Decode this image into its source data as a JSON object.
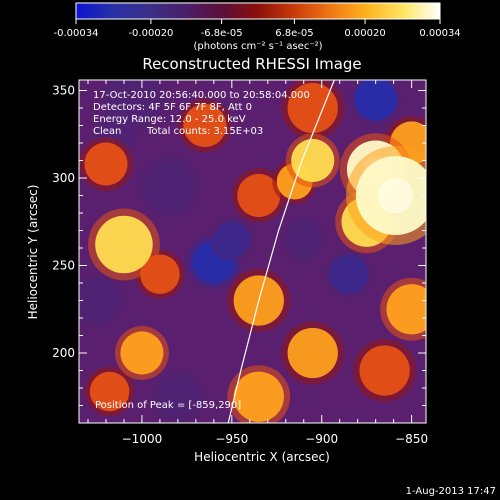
{
  "colorbar": {
    "gradient": [
      "#0a14d2",
      "#2830a6",
      "#3a2f8a",
      "#4a1f6a",
      "#5a0f3a",
      "#8c0f0a",
      "#c83c0a",
      "#f07814",
      "#ffb41e",
      "#ffe664",
      "#ffffff"
    ],
    "ticks": [
      "-0.00034",
      "-0.00020",
      "-6.8e-05",
      "6.8e-05",
      "0.00020",
      "0.00034"
    ],
    "tick_values": [
      -0.00034,
      -0.0002,
      -6.8e-05,
      6.8e-05,
      0.0002,
      0.00034
    ],
    "range": [
      -0.00034,
      0.00034
    ],
    "unit_label": "(photons cm⁻² s⁻¹ asec⁻²)"
  },
  "header": {
    "title": "Reconstructed RHESSI Image"
  },
  "annotations": {
    "time_range": "17-Oct-2010 20:56:40.000 to 20:58:04.000",
    "detectors": "Detectors: 4F 5F 6F 7F 8F, Att 0",
    "energy": "Energy Range: 12.0 - 25.0 keV",
    "algorithm": "Clean",
    "total_counts": "Total counts: 3.15E+03",
    "peak": "Position of Peak = [-859,290]"
  },
  "footer": {
    "timestamp": "1-Aug-2013 17:47"
  },
  "chart_data": {
    "type": "heatmap",
    "title": "Reconstructed RHESSI Image",
    "xlabel": "Heliocentric X (arcsec)",
    "ylabel": "Heliocentric Y (arcsec)",
    "xlim": [
      -1035,
      -842
    ],
    "ylim": [
      160,
      356
    ],
    "xticks": [
      -1000,
      -950,
      -900,
      -850
    ],
    "xtick_labels": [
      "−1000",
      "−950",
      "−900",
      "−850"
    ],
    "yticks": [
      200,
      250,
      300,
      350
    ],
    "ytick_labels": [
      "200",
      "250",
      "300",
      "350"
    ],
    "value_range": [
      -0.00034,
      0.00034
    ],
    "limb": [
      [
        -952,
        160
      ],
      [
        -945,
        190
      ],
      [
        -935,
        230
      ],
      [
        -924,
        270
      ],
      [
        -911,
        310
      ],
      [
        -893,
        356
      ]
    ],
    "peak": [
      -859,
      290
    ],
    "blobs": [
      {
        "x": -859,
        "y": 290,
        "r": 22,
        "v": 1.0
      },
      {
        "x": -870,
        "y": 305,
        "r": 16,
        "v": 0.9
      },
      {
        "x": -875,
        "y": 275,
        "r": 14,
        "v": 0.75
      },
      {
        "x": -850,
        "y": 320,
        "r": 12,
        "v": 0.6
      },
      {
        "x": -905,
        "y": 310,
        "r": 12,
        "v": 0.8
      },
      {
        "x": -915,
        "y": 298,
        "r": 10,
        "v": 0.6
      },
      {
        "x": -935,
        "y": 290,
        "r": 12,
        "v": 0.55
      },
      {
        "x": -1010,
        "y": 262,
        "r": 16,
        "v": 0.8
      },
      {
        "x": -990,
        "y": 245,
        "r": 11,
        "v": 0.45
      },
      {
        "x": -1000,
        "y": 200,
        "r": 12,
        "v": 0.7
      },
      {
        "x": -935,
        "y": 230,
        "r": 14,
        "v": 0.65
      },
      {
        "x": -905,
        "y": 200,
        "r": 14,
        "v": 0.6
      },
      {
        "x": -935,
        "y": 175,
        "r": 14,
        "v": 0.7
      },
      {
        "x": -850,
        "y": 225,
        "r": 14,
        "v": 0.7
      },
      {
        "x": -865,
        "y": 190,
        "r": 14,
        "v": 0.55
      },
      {
        "x": -905,
        "y": 340,
        "r": 14,
        "v": 0.55
      },
      {
        "x": -965,
        "y": 330,
        "r": 12,
        "v": 0.5
      },
      {
        "x": -1020,
        "y": 308,
        "r": 12,
        "v": 0.5
      },
      {
        "x": -1018,
        "y": 178,
        "r": 11,
        "v": 0.4
      },
      {
        "x": -960,
        "y": 252,
        "r": 12,
        "v": -0.8
      },
      {
        "x": -950,
        "y": 265,
        "r": 10,
        "v": -0.6
      },
      {
        "x": -870,
        "y": 345,
        "r": 12,
        "v": -0.7
      },
      {
        "x": -885,
        "y": 245,
        "r": 11,
        "v": -0.5
      },
      {
        "x": -1005,
        "y": 345,
        "r": 14,
        "v": -0.45
      },
      {
        "x": -1025,
        "y": 230,
        "r": 12,
        "v": -0.4
      },
      {
        "x": -980,
        "y": 175,
        "r": 12,
        "v": -0.45
      },
      {
        "x": -985,
        "y": 295,
        "r": 14,
        "v": -0.45
      },
      {
        "x": -1015,
        "y": 325,
        "r": 10,
        "v": -0.35
      },
      {
        "x": -910,
        "y": 265,
        "r": 10,
        "v": -0.4
      }
    ]
  }
}
